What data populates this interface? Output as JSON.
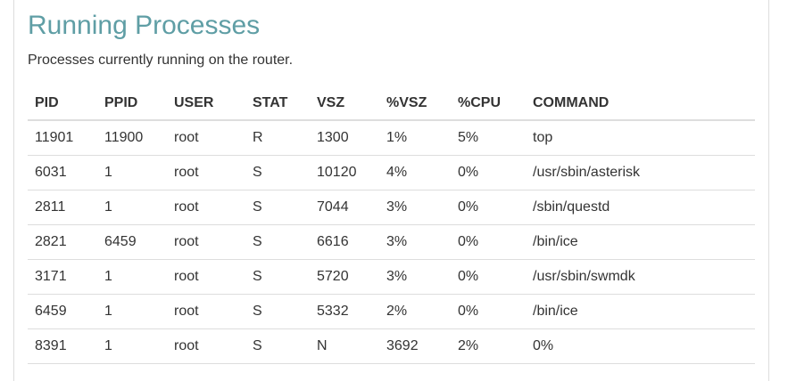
{
  "title": "Running Processes",
  "subtitle": "Processes currently running on the router.",
  "columns": [
    "PID",
    "PPID",
    "USER",
    "STAT",
    "VSZ",
    "%VSZ",
    "%CPU",
    "COMMAND"
  ],
  "rows": [
    [
      "11901",
      "11900",
      "root",
      "R",
      "1300",
      "1%",
      "5%",
      "top"
    ],
    [
      "6031",
      "1",
      "root",
      "S",
      "10120",
      "4%",
      "0%",
      "/usr/sbin/asterisk"
    ],
    [
      "2811",
      "1",
      "root",
      "S",
      "7044",
      "3%",
      "0%",
      "/sbin/questd"
    ],
    [
      "2821",
      "6459",
      "root",
      "S",
      "6616",
      "3%",
      "0%",
      "/bin/ice"
    ],
    [
      "3171",
      "1",
      "root",
      "S",
      "5720",
      "3%",
      "0%",
      "/usr/sbin/swmdk"
    ],
    [
      "6459",
      "1",
      "root",
      "S",
      "5332",
      "2%",
      "0%",
      "/bin/ice"
    ],
    [
      "8391",
      "1",
      "root",
      "S",
      "N",
      "3692",
      "2%",
      "0%"
    ]
  ]
}
